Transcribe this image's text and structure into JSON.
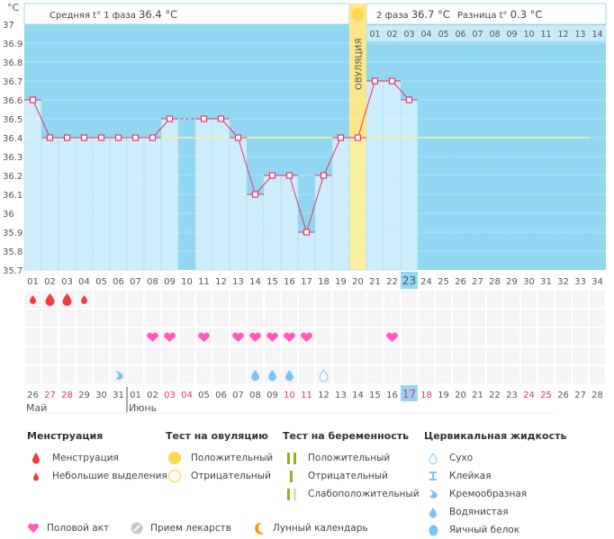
{
  "header": {
    "unit": "°C",
    "phase1_label": "Средняя t° 1 фаза",
    "phase1_value": "36.4 °C",
    "phase2_label": "2 фаза",
    "phase2_value": "36.7 °C",
    "diff_label": "Разница t°",
    "diff_value": "0.3 °C",
    "ovulation_label": "ОВУЛЯЦИЯ"
  },
  "colors": {
    "background_area": "#92d7f1",
    "bar_fill": "#cdedfb",
    "ovulation_fill": "#fbefa0",
    "line": "#e8336a",
    "cover_line": "#f5f0a8",
    "weekend": "#e8336a",
    "heart": "#ff5ab8",
    "blood": "#f23c3c",
    "fluid": "#7cc4ee",
    "sun": "#fdd84a",
    "today": "#92d7f1"
  },
  "chart_data": {
    "type": "bar",
    "title": "",
    "xlabel": "",
    "ylabel": "°C",
    "ylim": [
      35.7,
      37.0
    ],
    "yticks": [
      "37",
      "36.9",
      "36.8",
      "36.7",
      "36.6",
      "36.5",
      "36.4",
      "36.3",
      "36.2",
      "36.1",
      "36",
      "35.9",
      "35.8",
      "35.7"
    ],
    "cycle_days": [
      "01",
      "02",
      "03",
      "04",
      "05",
      "06",
      "07",
      "08",
      "09",
      "10",
      "11",
      "12",
      "13",
      "14",
      "15",
      "16",
      "17",
      "18",
      "19",
      "20",
      "21",
      "22",
      "23",
      "24",
      "25",
      "26",
      "27",
      "28",
      "29",
      "30",
      "31",
      "32",
      "33",
      "34"
    ],
    "phase2_days": [
      "01",
      "02",
      "03",
      "04",
      "05",
      "06",
      "07",
      "08",
      "09",
      "10",
      "11",
      "12",
      "13",
      "14"
    ],
    "temperatures": [
      36.6,
      36.4,
      36.4,
      36.4,
      36.4,
      36.4,
      36.4,
      36.4,
      36.5,
      null,
      36.5,
      36.5,
      36.4,
      36.1,
      36.2,
      36.2,
      35.9,
      36.2,
      36.4,
      36.4,
      36.7,
      36.7,
      36.6,
      null,
      null,
      null,
      null,
      null,
      null,
      null,
      null,
      null,
      null,
      null
    ],
    "cover_line": 36.4,
    "cover_line_end_day": 33,
    "ovulation_day": 20,
    "today_day": 23,
    "calendar_dates": [
      "26",
      "27",
      "28",
      "29",
      "30",
      "31",
      "01",
      "02",
      "03",
      "04",
      "05",
      "06",
      "07",
      "08",
      "09",
      "10",
      "11",
      "12",
      "13",
      "14",
      "15",
      "16",
      "17",
      "18",
      "19",
      "20",
      "21",
      "22",
      "23",
      "24",
      "25",
      "26",
      "27",
      "28"
    ],
    "weekend_indices": [
      1,
      2,
      8,
      9,
      15,
      16,
      22,
      23,
      29,
      30
    ],
    "months": [
      {
        "label": "Май",
        "start_index": 0
      },
      {
        "label": "Июнь",
        "start_index": 6
      }
    ],
    "menstruation": [
      {
        "day": 1,
        "type": "light"
      },
      {
        "day": 2,
        "type": "heavy"
      },
      {
        "day": 3,
        "type": "heavy"
      },
      {
        "day": 4,
        "type": "light"
      }
    ],
    "intercourse_days": [
      8,
      9,
      11,
      13,
      14,
      15,
      16,
      17,
      22
    ],
    "cervical_fluid": [
      {
        "day": 6,
        "type": "creamy"
      },
      {
        "day": 14,
        "type": "watery"
      },
      {
        "day": 15,
        "type": "watery"
      },
      {
        "day": 16,
        "type": "watery"
      },
      {
        "day": 18,
        "type": "dry"
      }
    ]
  },
  "legend": {
    "menstruation": {
      "title": "Менструация",
      "items": [
        "Менструация",
        "Небольшие выделения"
      ]
    },
    "ovulation_test": {
      "title": "Тест на овуляцию",
      "items": [
        "Положительный",
        "Отрицательный"
      ]
    },
    "pregnancy_test": {
      "title": "Тест на беременность",
      "items": [
        "Положительный",
        "Отрицательный",
        "Слабоположительный"
      ]
    },
    "cervical_fluid": {
      "title": "Цервикальная жидкость",
      "items": [
        "Сухо",
        "Клейкая",
        "Кремообразная",
        "Водянистая",
        "Яичный белок"
      ]
    },
    "bottom": [
      "Половой акт",
      "Прием лекарств",
      "Лунный календарь"
    ]
  }
}
